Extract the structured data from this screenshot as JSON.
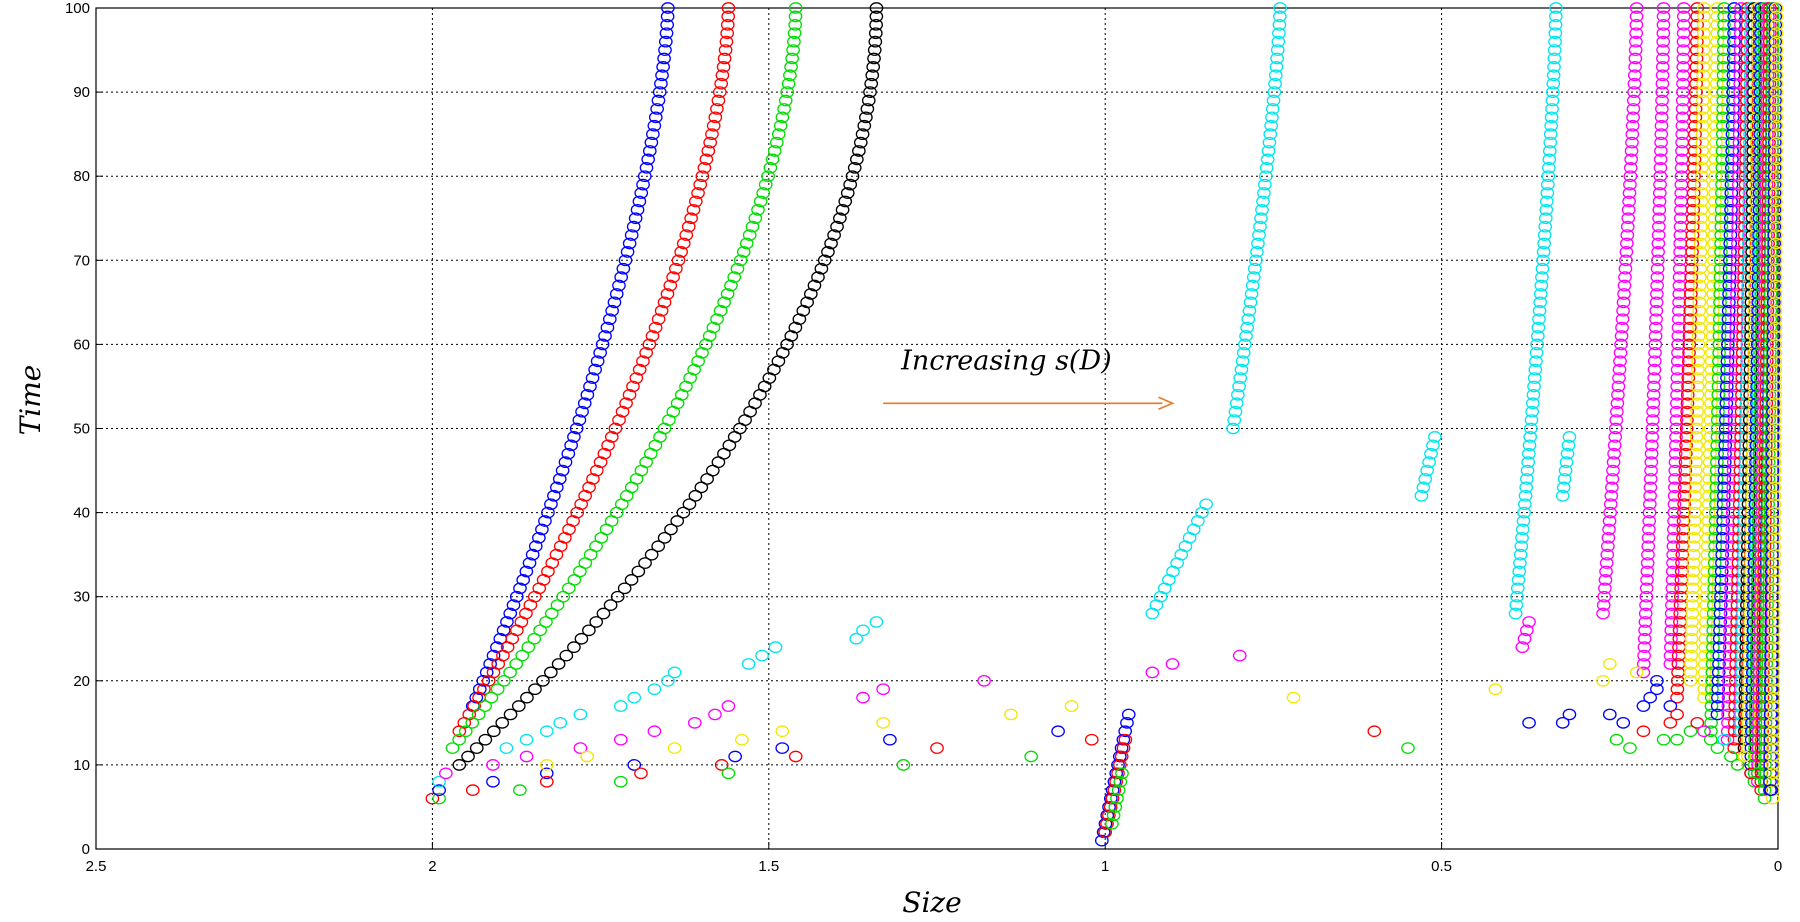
{
  "chart_data": {
    "type": "scatter",
    "title": "",
    "xlabel": "Size",
    "ylabel": "Time",
    "xlim": [
      0,
      2.5
    ],
    "x_reversed": true,
    "ylim": [
      0,
      100
    ],
    "xticks": [
      2.5,
      2,
      1.5,
      1,
      0.5,
      0
    ],
    "xtick_labels": [
      "2.5",
      "2",
      "1.5",
      "1",
      "0.5",
      "0"
    ],
    "yticks": [
      0,
      10,
      20,
      30,
      40,
      50,
      60,
      70,
      80,
      90,
      100
    ],
    "ytick_labels": [
      "0",
      "10",
      "20",
      "30",
      "40",
      "50",
      "60",
      "70",
      "80",
      "90",
      "100"
    ],
    "grid": true,
    "marker": "open-circle",
    "annotation": {
      "text": "Increasing s(D)",
      "arrow_from": [
        1.33,
        53
      ],
      "arrow_to": [
        0.9,
        53
      ]
    },
    "colors": {
      "blue": "#0000ff",
      "red": "#ff0000",
      "green": "#00dd00",
      "black": "#000000",
      "cyan": "#00e5ee",
      "magenta": "#ff00ff",
      "yellow": "#f2e800",
      "arrow": "#ee7722"
    },
    "series": [
      {
        "color": "blue",
        "curve": {
          "x_start": 1.94,
          "x_end": 1.65,
          "t_start": 17,
          "t_end": 100,
          "power": 1.5
        }
      },
      {
        "color": "red",
        "curve": {
          "x_start": 1.96,
          "x_end": 1.56,
          "t_start": 14,
          "t_end": 100,
          "power": 1.6
        }
      },
      {
        "color": "green",
        "curve": {
          "x_start": 1.97,
          "x_end": 1.46,
          "t_start": 12,
          "t_end": 100,
          "power": 1.7
        }
      },
      {
        "color": "black",
        "curve": {
          "x_start": 1.96,
          "x_end": 1.34,
          "t_start": 10,
          "t_end": 100,
          "power": 1.9
        }
      },
      {
        "color": "blue",
        "curve": {
          "x_start": 1.005,
          "x_end": 0.965,
          "t_start": 1,
          "t_end": 16,
          "power": 1.0
        }
      },
      {
        "color": "red",
        "curve": {
          "x_start": 1.0,
          "x_end": 0.97,
          "t_start": 2,
          "t_end": 13,
          "power": 1.0
        }
      },
      {
        "color": "green",
        "curve": {
          "x_start": 0.99,
          "x_end": 0.975,
          "t_start": 3,
          "t_end": 9,
          "power": 1.0
        }
      },
      {
        "color": "cyan",
        "curve": {
          "x_start": 0.81,
          "x_end": 0.74,
          "t_start": 50,
          "t_end": 100,
          "power": 1.3
        }
      },
      {
        "color": "cyan",
        "curve": {
          "x_start": 0.93,
          "x_end": 0.85,
          "t_start": 28,
          "t_end": 41,
          "power": 1.0
        }
      },
      {
        "color": "cyan",
        "curve": {
          "x_start": 0.53,
          "x_end": 0.51,
          "t_start": 42,
          "t_end": 49,
          "power": 1.0
        }
      },
      {
        "color": "cyan",
        "curve": {
          "x_start": 0.39,
          "x_end": 0.33,
          "t_start": 28,
          "t_end": 100,
          "power": 1.3
        }
      },
      {
        "color": "cyan",
        "curve": {
          "x_start": 0.32,
          "x_end": 0.31,
          "t_start": 42,
          "t_end": 49,
          "power": 1.0
        }
      },
      {
        "color": "magenta",
        "curve": {
          "x_start": 0.38,
          "x_end": 0.37,
          "t_start": 24,
          "t_end": 27,
          "power": 1.0
        }
      },
      {
        "color": "magenta",
        "curve": {
          "x_start": 0.26,
          "x_end": 0.21,
          "t_start": 28,
          "t_end": 100,
          "power": 1.3
        }
      },
      {
        "color": "magenta",
        "curve": {
          "x_start": 0.2,
          "x_end": 0.17,
          "t_start": 21,
          "t_end": 100,
          "power": 1.3
        }
      },
      {
        "color": "magenta",
        "curve": {
          "x_start": 0.16,
          "x_end": 0.14,
          "t_start": 22,
          "t_end": 100,
          "power": 1.3
        }
      },
      {
        "color": "red",
        "curve": {
          "x_start": 0.15,
          "x_end": 0.12,
          "t_start": 18,
          "t_end": 100,
          "power": 1.3
        }
      },
      {
        "color": "yellow",
        "curve": {
          "x_start": 0.13,
          "x_end": 0.11,
          "t_start": 20,
          "t_end": 100,
          "power": 1.3
        }
      },
      {
        "color": "yellow",
        "curve": {
          "x_start": 0.11,
          "x_end": 0.09,
          "t_start": 18,
          "t_end": 100,
          "power": 1.3
        }
      },
      {
        "color": "green",
        "curve": {
          "x_start": 0.1,
          "x_end": 0.08,
          "t_start": 13,
          "t_end": 100,
          "power": 1.3
        }
      },
      {
        "color": "blue",
        "curve": {
          "x_start": 0.09,
          "x_end": 0.065,
          "t_start": 16,
          "t_end": 100,
          "power": 1.3
        }
      },
      {
        "color": "magenta",
        "curve": {
          "x_start": 0.075,
          "x_end": 0.055,
          "t_start": 13,
          "t_end": 100,
          "power": 1.3
        }
      },
      {
        "color": "red",
        "curve": {
          "x_start": 0.065,
          "x_end": 0.045,
          "t_start": 12,
          "t_end": 100,
          "power": 1.3
        }
      },
      {
        "color": "cyan",
        "curve": {
          "x_start": 0.055,
          "x_end": 0.04,
          "t_start": 14,
          "t_end": 100,
          "power": 1.3
        }
      },
      {
        "color": "black",
        "curve": {
          "x_start": 0.05,
          "x_end": 0.035,
          "t_start": 11,
          "t_end": 100,
          "power": 1.3
        }
      },
      {
        "color": "yellow",
        "curve": {
          "x_start": 0.045,
          "x_end": 0.03,
          "t_start": 10,
          "t_end": 100,
          "power": 1.3
        }
      },
      {
        "color": "blue",
        "curve": {
          "x_start": 0.04,
          "x_end": 0.025,
          "t_start": 9,
          "t_end": 100,
          "power": 1.3
        }
      },
      {
        "color": "green",
        "curve": {
          "x_start": 0.035,
          "x_end": 0.02,
          "t_start": 8,
          "t_end": 100,
          "power": 1.3
        }
      },
      {
        "color": "magenta",
        "curve": {
          "x_start": 0.03,
          "x_end": 0.015,
          "t_start": 8,
          "t_end": 100,
          "power": 1.3
        }
      },
      {
        "color": "red",
        "curve": {
          "x_start": 0.025,
          "x_end": 0.012,
          "t_start": 7,
          "t_end": 100,
          "power": 1.3
        }
      },
      {
        "color": "green",
        "curve": {
          "x_start": 0.02,
          "x_end": 0.008,
          "t_start": 6,
          "t_end": 100,
          "power": 1.3
        }
      },
      {
        "color": "blue",
        "curve": {
          "x_start": 0.012,
          "x_end": 0.004,
          "t_start": 7,
          "t_end": 100,
          "power": 1.3
        }
      },
      {
        "color": "yellow",
        "curve": {
          "x_start": 0.008,
          "x_end": 0.002,
          "t_start": 6,
          "t_end": 100,
          "power": 1.3
        }
      }
    ],
    "scatter_points": [
      {
        "color": "red",
        "x": 2.0,
        "y": 6
      },
      {
        "color": "green",
        "x": 1.99,
        "y": 6
      },
      {
        "color": "blue",
        "x": 1.99,
        "y": 7
      },
      {
        "color": "cyan",
        "x": 1.99,
        "y": 8
      },
      {
        "color": "magenta",
        "x": 1.98,
        "y": 9
      },
      {
        "color": "red",
        "x": 1.94,
        "y": 7
      },
      {
        "color": "blue",
        "x": 1.91,
        "y": 8
      },
      {
        "color": "green",
        "x": 1.87,
        "y": 7
      },
      {
        "color": "magenta",
        "x": 1.91,
        "y": 10
      },
      {
        "color": "cyan",
        "x": 1.89,
        "y": 12
      },
      {
        "color": "magenta",
        "x": 1.86,
        "y": 11
      },
      {
        "color": "blue",
        "x": 1.83,
        "y": 9
      },
      {
        "color": "red",
        "x": 1.83,
        "y": 8
      },
      {
        "color": "yellow",
        "x": 1.83,
        "y": 10
      },
      {
        "color": "cyan",
        "x": 1.86,
        "y": 13
      },
      {
        "color": "cyan",
        "x": 1.83,
        "y": 14
      },
      {
        "color": "cyan",
        "x": 1.81,
        "y": 15
      },
      {
        "color": "cyan",
        "x": 1.78,
        "y": 16
      },
      {
        "color": "magenta",
        "x": 1.78,
        "y": 12
      },
      {
        "color": "yellow",
        "x": 1.77,
        "y": 11
      },
      {
        "color": "green",
        "x": 1.72,
        "y": 8
      },
      {
        "color": "blue",
        "x": 1.7,
        "y": 10
      },
      {
        "color": "red",
        "x": 1.69,
        "y": 9
      },
      {
        "color": "magenta",
        "x": 1.72,
        "y": 13
      },
      {
        "color": "cyan",
        "x": 1.72,
        "y": 17
      },
      {
        "color": "cyan",
        "x": 1.7,
        "y": 18
      },
      {
        "color": "cyan",
        "x": 1.67,
        "y": 19
      },
      {
        "color": "cyan",
        "x": 1.65,
        "y": 20
      },
      {
        "color": "cyan",
        "x": 1.64,
        "y": 21
      },
      {
        "color": "magenta",
        "x": 1.67,
        "y": 14
      },
      {
        "color": "yellow",
        "x": 1.64,
        "y": 12
      },
      {
        "color": "magenta",
        "x": 1.61,
        "y": 15
      },
      {
        "color": "magenta",
        "x": 1.58,
        "y": 16
      },
      {
        "color": "magenta",
        "x": 1.56,
        "y": 17
      },
      {
        "color": "red",
        "x": 1.57,
        "y": 10
      },
      {
        "color": "green",
        "x": 1.56,
        "y": 9
      },
      {
        "color": "blue",
        "x": 1.55,
        "y": 11
      },
      {
        "color": "yellow",
        "x": 1.54,
        "y": 13
      },
      {
        "color": "cyan",
        "x": 1.53,
        "y": 22
      },
      {
        "color": "cyan",
        "x": 1.51,
        "y": 23
      },
      {
        "color": "cyan",
        "x": 1.49,
        "y": 24
      },
      {
        "color": "yellow",
        "x": 1.48,
        "y": 14
      },
      {
        "color": "blue",
        "x": 1.48,
        "y": 12
      },
      {
        "color": "red",
        "x": 1.46,
        "y": 11
      },
      {
        "color": "cyan",
        "x": 1.37,
        "y": 25
      },
      {
        "color": "cyan",
        "x": 1.36,
        "y": 26
      },
      {
        "color": "cyan",
        "x": 1.34,
        "y": 27
      },
      {
        "color": "magenta",
        "x": 1.36,
        "y": 18
      },
      {
        "color": "magenta",
        "x": 1.33,
        "y": 19
      },
      {
        "color": "yellow",
        "x": 1.33,
        "y": 15
      },
      {
        "color": "blue",
        "x": 1.32,
        "y": 13
      },
      {
        "color": "green",
        "x": 1.3,
        "y": 10
      },
      {
        "color": "red",
        "x": 1.25,
        "y": 12
      },
      {
        "color": "magenta",
        "x": 1.18,
        "y": 20
      },
      {
        "color": "yellow",
        "x": 1.14,
        "y": 16
      },
      {
        "color": "green",
        "x": 1.11,
        "y": 11
      },
      {
        "color": "blue",
        "x": 1.07,
        "y": 14
      },
      {
        "color": "yellow",
        "x": 1.05,
        "y": 17
      },
      {
        "color": "red",
        "x": 1.02,
        "y": 13
      },
      {
        "color": "magenta",
        "x": 0.93,
        "y": 21
      },
      {
        "color": "magenta",
        "x": 0.9,
        "y": 22
      },
      {
        "color": "magenta",
        "x": 0.8,
        "y": 23
      },
      {
        "color": "yellow",
        "x": 0.72,
        "y": 18
      },
      {
        "color": "red",
        "x": 0.6,
        "y": 14
      },
      {
        "color": "green",
        "x": 0.55,
        "y": 12
      },
      {
        "color": "yellow",
        "x": 0.42,
        "y": 19
      },
      {
        "color": "blue",
        "x": 0.37,
        "y": 15
      },
      {
        "color": "blue",
        "x": 0.32,
        "y": 15
      },
      {
        "color": "blue",
        "x": 0.31,
        "y": 16
      },
      {
        "color": "yellow",
        "x": 0.26,
        "y": 20
      },
      {
        "color": "yellow",
        "x": 0.25,
        "y": 22
      },
      {
        "color": "blue",
        "x": 0.25,
        "y": 16
      },
      {
        "color": "green",
        "x": 0.24,
        "y": 13
      },
      {
        "color": "blue",
        "x": 0.23,
        "y": 15
      },
      {
        "color": "green",
        "x": 0.22,
        "y": 12
      },
      {
        "color": "red",
        "x": 0.2,
        "y": 14
      },
      {
        "color": "blue",
        "x": 0.2,
        "y": 17
      },
      {
        "color": "yellow",
        "x": 0.21,
        "y": 21
      },
      {
        "color": "blue",
        "x": 0.19,
        "y": 18
      },
      {
        "color": "blue",
        "x": 0.18,
        "y": 19
      },
      {
        "color": "blue",
        "x": 0.18,
        "y": 20
      },
      {
        "color": "green",
        "x": 0.17,
        "y": 13
      },
      {
        "color": "red",
        "x": 0.16,
        "y": 15
      },
      {
        "color": "blue",
        "x": 0.16,
        "y": 17
      },
      {
        "color": "green",
        "x": 0.15,
        "y": 13
      },
      {
        "color": "red",
        "x": 0.15,
        "y": 16
      },
      {
        "color": "green",
        "x": 0.13,
        "y": 14
      },
      {
        "color": "red",
        "x": 0.12,
        "y": 15
      },
      {
        "color": "magenta",
        "x": 0.11,
        "y": 14
      },
      {
        "color": "green",
        "x": 0.09,
        "y": 12
      },
      {
        "color": "cyan",
        "x": 0.08,
        "y": 13
      },
      {
        "color": "green",
        "x": 0.07,
        "y": 11
      },
      {
        "color": "green",
        "x": 0.06,
        "y": 10
      },
      {
        "color": "yellow",
        "x": 0.05,
        "y": 11
      },
      {
        "color": "red",
        "x": 0.04,
        "y": 9
      },
      {
        "color": "green",
        "x": 0.03,
        "y": 9
      },
      {
        "color": "blue",
        "x": 0.01,
        "y": 7
      }
    ]
  }
}
